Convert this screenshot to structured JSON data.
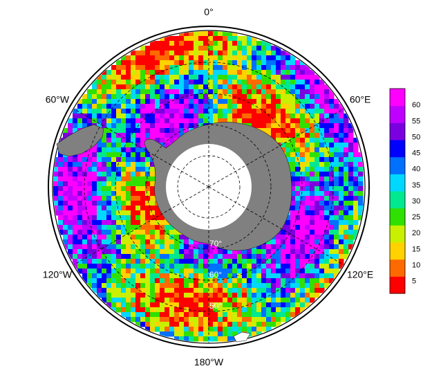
{
  "map": {
    "projection": "south-polar-stereographic",
    "background_color": "#ffffff",
    "land_color": "#808080",
    "pole_hole_color": "#ffffff",
    "graticule_style": "dashed",
    "longitude_labels": [
      {
        "lon": 0,
        "text": "0°"
      },
      {
        "lon": 60,
        "text": "60°E"
      },
      {
        "lon": 120,
        "text": "120°E"
      },
      {
        "lon": 180,
        "text": "180°W"
      },
      {
        "lon": -120,
        "text": "120°W"
      },
      {
        "lon": -60,
        "text": "60°W"
      }
    ],
    "latitude_labels": [
      {
        "lat": -70,
        "text": "70°"
      },
      {
        "lat": -60,
        "text": "60°"
      },
      {
        "lat": -50,
        "text": "50°"
      }
    ],
    "latitude_circles": [
      -50,
      -60,
      -70,
      -80
    ],
    "latitude_extent": [
      -90,
      -40
    ]
  },
  "colorbar": {
    "colormap": "rainbow (red → magenta)",
    "range": [
      1,
      65
    ],
    "ticks": [
      "5",
      "10",
      "15",
      "20",
      "25",
      "30",
      "35",
      "40",
      "45",
      "50",
      "55",
      "60"
    ],
    "colors": [
      "#ff0000",
      "#ff6a00",
      "#ffd200",
      "#c8f000",
      "#30e000",
      "#00e890",
      "#00d8ff",
      "#0070ff",
      "#0000ff",
      "#7a00e0",
      "#c000ff",
      "#ff00ff"
    ]
  }
}
